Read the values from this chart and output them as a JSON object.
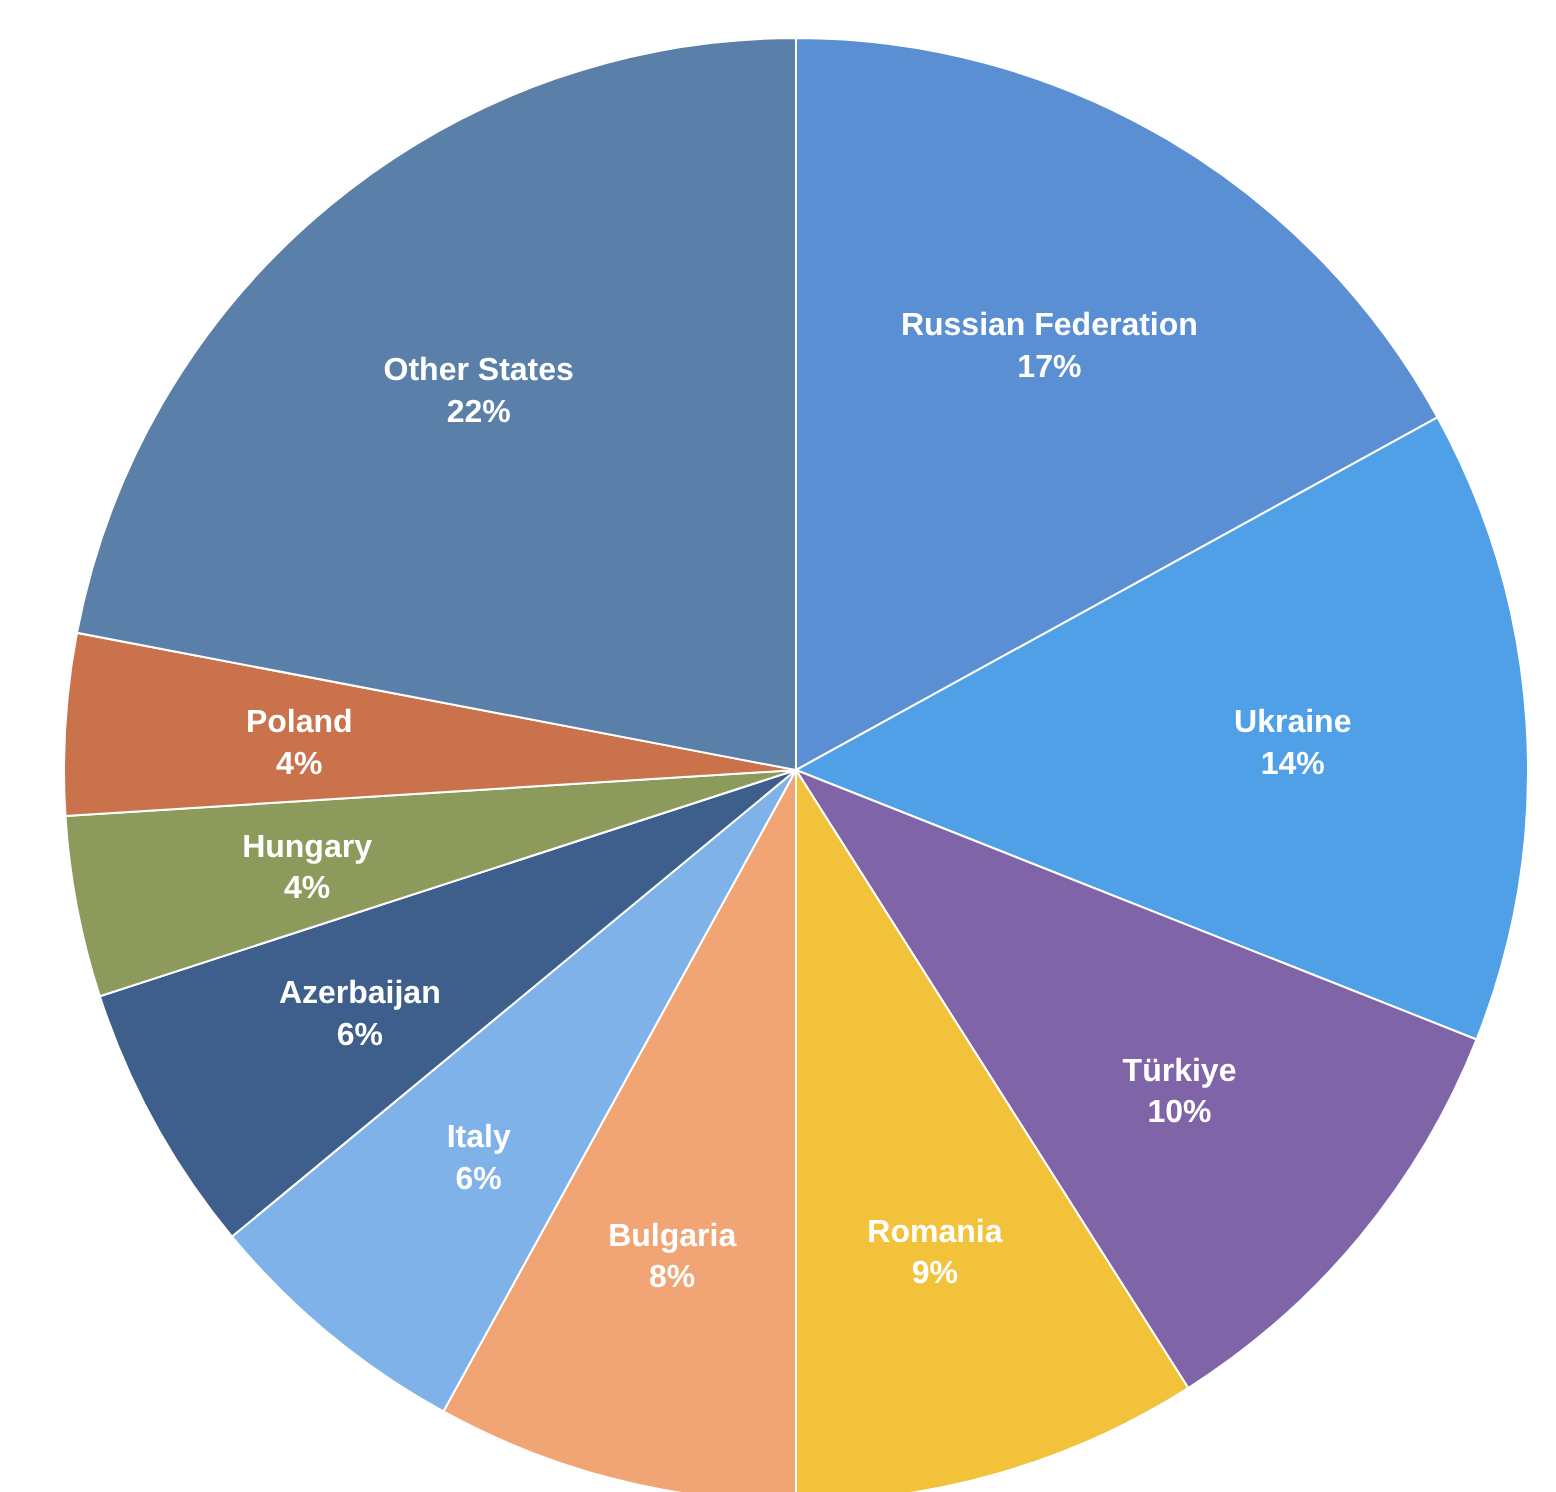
{
  "chart_data": {
    "type": "pie",
    "categories": [
      "Russian Federation",
      "Ukraine",
      "Türkiye",
      "Romania",
      "Bulgaria",
      "Italy",
      "Azerbaijan",
      "Hungary",
      "Poland",
      "Other States"
    ],
    "values": [
      17,
      14,
      10,
      9,
      8,
      6,
      6,
      4,
      4,
      22
    ],
    "value_labels": [
      "17%",
      "14%",
      "10%",
      "9%",
      "8%",
      "6%",
      "6%",
      "4%",
      "4%",
      "22%"
    ],
    "colors": [
      "#5a8fd3",
      "#4fa0e6",
      "#8064a8",
      "#f2c33a",
      "#f1a574",
      "#7fb2e8",
      "#3e5f8c",
      "#8c9a5c",
      "#c9724c",
      "#5a7fa8"
    ]
  }
}
